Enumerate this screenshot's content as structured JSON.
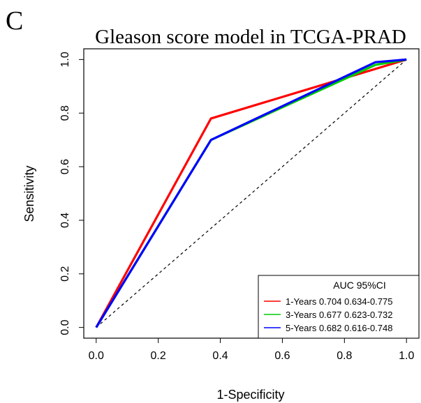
{
  "panel_label": "C",
  "chart_data": {
    "type": "line",
    "title": "Gleason score model in TCGA-PRAD",
    "xlabel": "1-Specificity",
    "ylabel": "Sensitivity",
    "xlim": [
      -0.04,
      1.04
    ],
    "ylim": [
      -0.04,
      1.04
    ],
    "x_ticks": [
      0.0,
      0.2,
      0.4,
      0.6,
      0.8,
      1.0
    ],
    "x_tick_labels": [
      "0.0",
      "0.2",
      "0.4",
      "0.6",
      "0.8",
      "1.0"
    ],
    "y_ticks": [
      0.0,
      0.2,
      0.4,
      0.6,
      0.8,
      1.0
    ],
    "y_tick_labels": [
      "0.0",
      "0.2",
      "0.4",
      "0.6",
      "0.8",
      "1.0"
    ],
    "grid": false,
    "reference_line": {
      "x": [
        0,
        1
      ],
      "y": [
        0,
        1
      ],
      "style": "dashed",
      "color": "#000000"
    },
    "legend": {
      "position": "bottom-right",
      "title": "AUC 95%CI",
      "entries": [
        {
          "label": "1-Years 0.704 0.634-0.775",
          "color": "#ff0000"
        },
        {
          "label": "3-Years 0.677 0.623-0.732",
          "color": "#00cc00"
        },
        {
          "label": "5-Years 0.682 0.616-0.748",
          "color": "#0000ff"
        }
      ]
    },
    "series": [
      {
        "color": "#ff0000",
        "x": [
          0.0,
          0.37,
          1.0
        ],
        "y": [
          0.0,
          0.78,
          1.0
        ]
      },
      {
        "color": "#00cc00",
        "x": [
          0.0,
          0.37,
          0.9,
          1.0
        ],
        "y": [
          0.0,
          0.7,
          0.98,
          1.0
        ]
      },
      {
        "color": "#0000ff",
        "x": [
          0.0,
          0.37,
          0.9,
          1.0
        ],
        "y": [
          0.0,
          0.7,
          0.99,
          1.0
        ]
      }
    ]
  }
}
